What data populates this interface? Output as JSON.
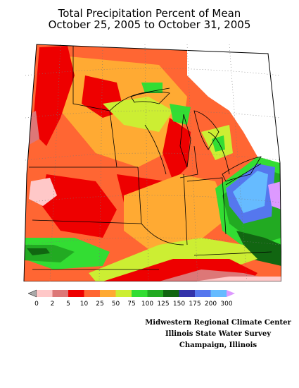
{
  "title": {
    "line1": "Total Precipitation Percent of Mean",
    "line2": "October 25, 2005 to October 31, 2005"
  },
  "legend": {
    "ticks": [
      "0",
      "2",
      "5",
      "10",
      "25",
      "50",
      "75",
      "100",
      "125",
      "150",
      "175",
      "200",
      "300"
    ],
    "colors": [
      "#a9a9a9",
      "#ffc8c8",
      "#dd7777",
      "#ee0000",
      "#ff6633",
      "#ffaa33",
      "#ccee33",
      "#33dd33",
      "#22aa22",
      "#116611",
      "#3333aa",
      "#5577ee",
      "#66bbff",
      "#dd99ff"
    ]
  },
  "credits": [
    "Midwestern Regional Climate Center",
    "Illinois State Water Survey",
    "Champaign, Illinois"
  ],
  "map": {
    "region": "Midwest United States",
    "colors": {
      "red": "#ee0000",
      "orange_red": "#ff6633",
      "orange": "#ffaa33",
      "yellow_green": "#ccee33",
      "green": "#33dd33",
      "mid_green": "#22aa22",
      "dark_green": "#116611",
      "blue": "#5577ee",
      "light_blue": "#66bbff",
      "pink": "#ffc8c8",
      "rose": "#dd7777",
      "violet": "#dd99ff"
    }
  }
}
